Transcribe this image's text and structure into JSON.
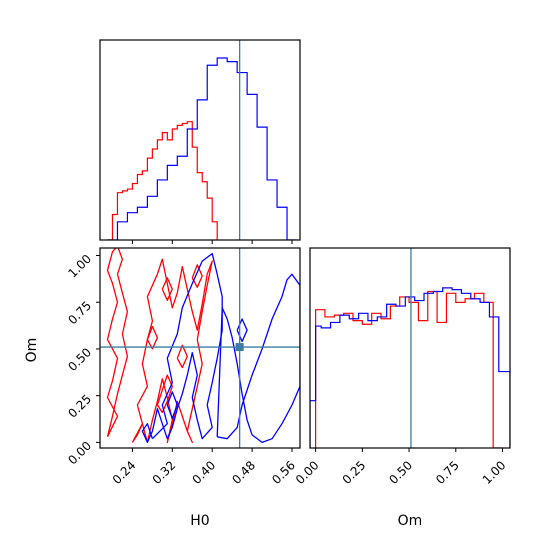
{
  "chart_data": {
    "type": "corner",
    "params": [
      "H0",
      "Om"
    ],
    "truth": {
      "H0": 0.455,
      "Om": 0.51
    },
    "colors": {
      "series_a": "#ff0000",
      "series_b": "#0000ff",
      "truth": "#3b7ea1"
    },
    "panels": [
      {
        "id": "hist-H0",
        "type": "step-histogram",
        "x_range": [
          0.175,
          0.576
        ],
        "xticks": [
          0.24,
          0.32,
          0.4,
          0.48,
          0.56
        ],
        "show_y_ticks": false,
        "series": [
          {
            "color_key": "series_a",
            "bin_edges": [
              0.19,
              0.2,
              0.21,
              0.22,
              0.23,
              0.24,
              0.25,
              0.26,
              0.27,
              0.28,
              0.29,
              0.3,
              0.31,
              0.32,
              0.33,
              0.34,
              0.35,
              0.36,
              0.37,
              0.38,
              0.39,
              0.4,
              0.41
            ],
            "counts": [
              0.0,
              0.14,
              0.26,
              0.27,
              0.28,
              0.31,
              0.36,
              0.38,
              0.45,
              0.5,
              0.55,
              0.59,
              0.55,
              0.61,
              0.63,
              0.64,
              0.65,
              0.51,
              0.37,
              0.32,
              0.23,
              0.1
            ]
          },
          {
            "color_key": "series_b",
            "bin_edges": [
              0.19,
              0.21,
              0.23,
              0.25,
              0.27,
              0.29,
              0.31,
              0.33,
              0.35,
              0.37,
              0.39,
              0.41,
              0.43,
              0.45,
              0.47,
              0.49,
              0.51,
              0.53,
              0.55,
              0.57
            ],
            "counts": [
              0.0,
              0.1,
              0.15,
              0.18,
              0.24,
              0.33,
              0.41,
              0.46,
              0.61,
              0.77,
              0.96,
              1.0,
              0.98,
              0.92,
              0.8,
              0.62,
              0.33,
              0.18,
              0.0
            ]
          }
        ]
      },
      {
        "id": "contour-H0-Om",
        "type": "contour",
        "x_range": [
          0.175,
          0.576
        ],
        "y_range": [
          -0.03,
          1.04
        ],
        "xticks": [
          0.24,
          0.32,
          0.4,
          0.48,
          0.56
        ],
        "yticks": [
          0.0,
          0.25,
          0.5,
          0.75,
          1.0
        ],
        "xlabel": "H0",
        "ylabel": "Om",
        "series": [
          {
            "color_key": "series_a",
            "contours": [
              {
                "x": [
                  0.19,
                  0.21,
                  0.19,
                  0.2,
                  0.21,
                  0.19,
                  0.2,
                  0.21,
                  0.2,
                  0.19,
                  0.2,
                  0.21,
                  0.22,
                  0.21,
                  0.22,
                  0.23,
                  0.22,
                  0.23,
                  0.22,
                  0.21,
                  0.2,
                  0.19
                ],
                "y": [
                  0.03,
                  0.14,
                  0.24,
                  0.33,
                  0.45,
                  0.55,
                  0.66,
                  0.75,
                  0.85,
                  0.92,
                  1.02,
                  1.05,
                  0.98,
                  0.9,
                  0.8,
                  0.7,
                  0.58,
                  0.46,
                  0.36,
                  0.26,
                  0.14,
                  0.03
                ]
              },
              {
                "x": [
                  0.24,
                  0.26,
                  0.25,
                  0.27,
                  0.26,
                  0.27,
                  0.28,
                  0.27,
                  0.29,
                  0.3,
                  0.31,
                  0.32,
                  0.33,
                  0.34,
                  0.35,
                  0.36,
                  0.37,
                  0.38,
                  0.39,
                  0.4,
                  0.39,
                  0.38,
                  0.37,
                  0.38,
                  0.37,
                  0.36,
                  0.35,
                  0.36,
                  0.35,
                  0.34,
                  0.33,
                  0.32,
                  0.31,
                  0.32,
                  0.31,
                  0.3,
                  0.29,
                  0.28,
                  0.27,
                  0.26,
                  0.25,
                  0.24
                ],
                "y": [
                  0.0,
                  0.1,
                  0.2,
                  0.3,
                  0.42,
                  0.55,
                  0.65,
                  0.78,
                  0.9,
                  0.98,
                  0.85,
                  0.72,
                  0.8,
                  0.94,
                  0.82,
                  0.7,
                  0.6,
                  0.74,
                  0.9,
                  0.97,
                  0.84,
                  0.7,
                  0.55,
                  0.42,
                  0.3,
                  0.18,
                  0.06,
                  0.0,
                  0.06,
                  0.14,
                  0.22,
                  0.1,
                  0.0,
                  0.12,
                  0.24,
                  0.34,
                  0.22,
                  0.12,
                  0.0,
                  0.1,
                  0.04,
                  0.0
                ]
              },
              {
                "x": [
                  0.29,
                  0.3,
                  0.31,
                  0.32,
                  0.31,
                  0.3,
                  0.29
                ],
                "y": [
                  0.2,
                  0.28,
                  0.36,
                  0.3,
                  0.22,
                  0.16,
                  0.2
                ]
              },
              {
                "x": [
                  0.33,
                  0.34,
                  0.35,
                  0.34,
                  0.33
                ],
                "y": [
                  0.45,
                  0.52,
                  0.46,
                  0.4,
                  0.45
                ]
              },
              {
                "x": [
                  0.36,
                  0.37,
                  0.38,
                  0.37,
                  0.36
                ],
                "y": [
                  0.88,
                  0.95,
                  0.89,
                  0.83,
                  0.88
                ]
              },
              {
                "x": [
                  0.3,
                  0.31,
                  0.32,
                  0.31,
                  0.3
                ],
                "y": [
                  0.82,
                  0.88,
                  0.82,
                  0.76,
                  0.82
                ]
              },
              {
                "x": [
                  0.27,
                  0.28,
                  0.29,
                  0.28,
                  0.27
                ],
                "y": [
                  0.55,
                  0.62,
                  0.56,
                  0.5,
                  0.55
                ]
              }
            ]
          },
          {
            "color_key": "series_b",
            "contours": [
              {
                "x": [
                  0.28,
                  0.31,
                  0.3,
                  0.32,
                  0.31,
                  0.33,
                  0.34,
                  0.36,
                  0.38,
                  0.4,
                  0.41,
                  0.42,
                  0.42,
                  0.41,
                  0.4,
                  0.39,
                  0.4,
                  0.38,
                  0.37,
                  0.36,
                  0.37,
                  0.36,
                  0.35,
                  0.34,
                  0.33,
                  0.32,
                  0.31,
                  0.3,
                  0.29,
                  0.28,
                  0.27,
                  0.26,
                  0.27,
                  0.28
                ],
                "y": [
                  0.02,
                  0.1,
                  0.2,
                  0.32,
                  0.45,
                  0.58,
                  0.72,
                  0.85,
                  0.97,
                  1.01,
                  0.9,
                  0.78,
                  0.6,
                  0.45,
                  0.32,
                  0.2,
                  0.08,
                  0.02,
                  0.12,
                  0.24,
                  0.36,
                  0.48,
                  0.36,
                  0.26,
                  0.18,
                  0.08,
                  0.02,
                  0.1,
                  0.18,
                  0.06,
                  0.0,
                  0.06,
                  0.1,
                  0.02
                ]
              },
              {
                "x": [
                  0.41,
                  0.43,
                  0.45,
                  0.46,
                  0.48,
                  0.5,
                  0.52,
                  0.54,
                  0.55,
                  0.56,
                  0.576,
                  0.576,
                  0.56,
                  0.54,
                  0.52,
                  0.5,
                  0.48,
                  0.47,
                  0.46,
                  0.45,
                  0.44,
                  0.43,
                  0.42,
                  0.41
                ],
                "y": [
                  0.03,
                  0.02,
                  0.08,
                  0.2,
                  0.36,
                  0.5,
                  0.66,
                  0.78,
                  0.87,
                  0.9,
                  0.84,
                  0.3,
                  0.2,
                  0.1,
                  0.02,
                  0.0,
                  0.04,
                  0.12,
                  0.26,
                  0.42,
                  0.56,
                  0.66,
                  0.72,
                  0.03
                ]
              },
              {
                "x": [
                  0.45,
                  0.46,
                  0.47,
                  0.46,
                  0.45
                ],
                "y": [
                  0.6,
                  0.66,
                  0.6,
                  0.54,
                  0.6
                ]
              },
              {
                "x": [
                  0.31,
                  0.32,
                  0.33,
                  0.32,
                  0.31
                ],
                "y": [
                  0.2,
                  0.27,
                  0.2,
                  0.13,
                  0.2
                ]
              }
            ]
          }
        ]
      },
      {
        "id": "hist-Om",
        "type": "step-histogram",
        "x_range": [
          -0.03,
          1.04
        ],
        "xticks": [
          0.0,
          0.25,
          0.5,
          0.75,
          1.0
        ],
        "xlabel": "Om",
        "show_y_ticks": false,
        "series": [
          {
            "color_key": "series_a",
            "bin_edges": [
              0.0,
              0.05,
              0.1,
              0.15,
              0.2,
              0.25,
              0.3,
              0.35,
              0.4,
              0.45,
              0.5,
              0.55,
              0.6,
              0.65,
              0.7,
              0.75,
              0.8,
              0.85,
              0.9,
              0.95,
              1.0
            ],
            "counts": [
              0.76,
              0.72,
              0.73,
              0.74,
              0.7,
              0.68,
              0.74,
              0.71,
              0.78,
              0.83,
              0.8,
              0.7,
              0.86,
              0.69,
              0.85,
              0.8,
              0.82,
              0.85,
              0.8,
              0.0
            ]
          },
          {
            "color_key": "series_b",
            "bin_edges": [
              -0.03,
              0.0,
              0.03,
              0.08,
              0.13,
              0.18,
              0.23,
              0.28,
              0.33,
              0.38,
              0.43,
              0.48,
              0.53,
              0.58,
              0.63,
              0.68,
              0.73,
              0.78,
              0.83,
              0.88,
              0.93,
              0.98,
              1.04
            ],
            "counts": [
              0.26,
              0.67,
              0.66,
              0.69,
              0.73,
              0.71,
              0.74,
              0.7,
              0.72,
              0.79,
              0.78,
              0.83,
              0.81,
              0.85,
              0.86,
              0.88,
              0.87,
              0.85,
              0.82,
              0.8,
              0.72,
              0.42
            ]
          }
        ]
      }
    ]
  }
}
